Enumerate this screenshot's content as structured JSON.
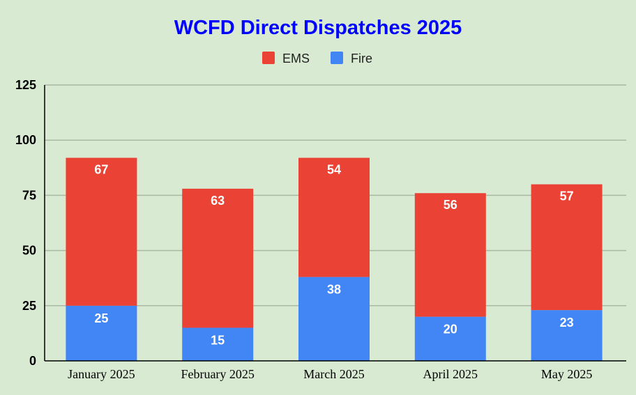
{
  "chart_data": {
    "type": "bar",
    "stacked": true,
    "title": "WCFD Direct Dispatches 2025",
    "categories": [
      "January 2025",
      "February 2025",
      "March 2025",
      "April 2025",
      "May 2025"
    ],
    "series": [
      {
        "name": "Fire",
        "values": [
          25,
          15,
          38,
          20,
          23
        ]
      },
      {
        "name": "EMS",
        "values": [
          67,
          63,
          54,
          56,
          57
        ]
      }
    ],
    "legend": {
      "placement": "top-center",
      "entries": [
        "EMS",
        "Fire"
      ]
    },
    "ylim": [
      0,
      125
    ],
    "yticks": [
      "0",
      "25",
      "50",
      "75",
      "100",
      "125"
    ],
    "grid": true,
    "xlabel": "",
    "ylabel": ""
  },
  "colors": {
    "background": "#d9ead3",
    "title": "#0000ff",
    "EMS": "#ea4335",
    "Fire": "#4285f4",
    "gridline": "#a9b8a2",
    "axis": "#000000"
  }
}
